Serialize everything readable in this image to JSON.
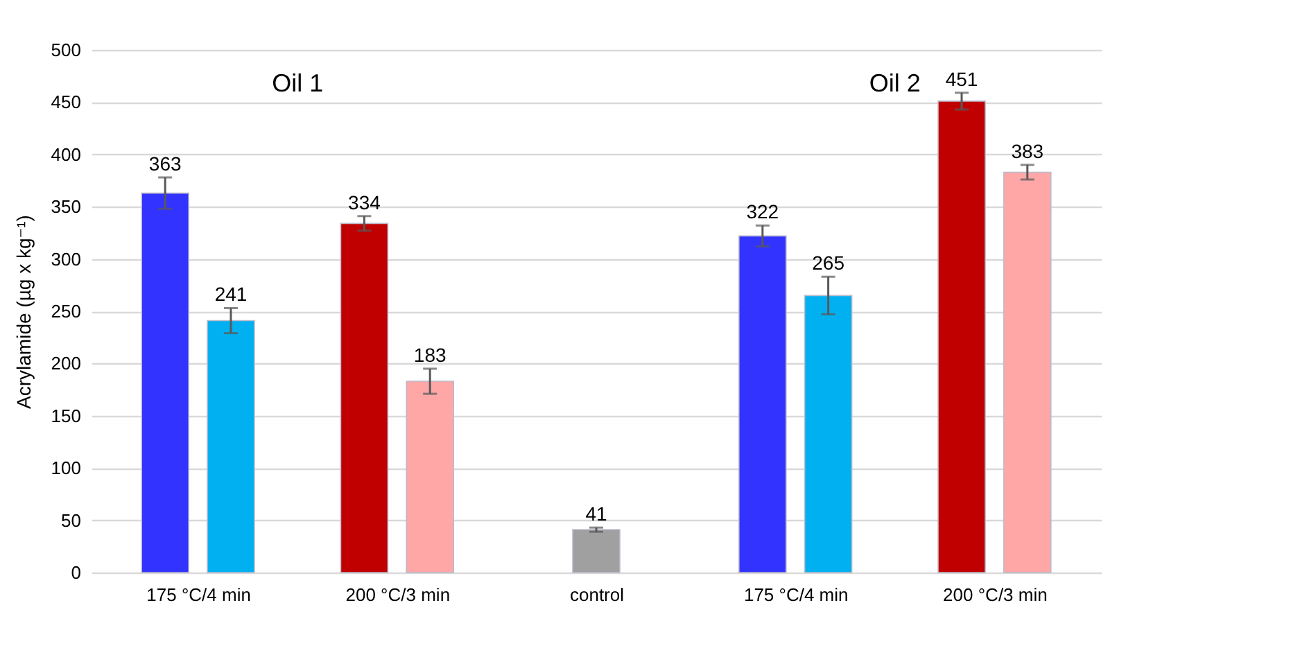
{
  "chart_data": {
    "type": "bar",
    "ylabel": "Acrylamide (µg x kg⁻¹)",
    "categories": [
      "175 °C/4 min",
      "200 °C/3 min",
      "control",
      "175 °C/4 min",
      "200 °C/3 min"
    ],
    "series": [
      {
        "colors": [
          "#3333ff",
          "#c00000",
          "#a0a0a0",
          "#3333ff",
          "#c00000"
        ],
        "values": [
          363,
          334,
          41,
          322,
          451
        ],
        "errors": [
          15,
          7,
          2,
          10,
          8
        ]
      },
      {
        "colors": [
          "#00b0f0",
          "#ffa7a7",
          null,
          "#00b0f0",
          "#ffa7a7"
        ],
        "values": [
          241,
          183,
          null,
          265,
          383
        ],
        "errors": [
          12,
          12,
          null,
          18,
          7
        ]
      }
    ],
    "ylim": [
      0,
      500
    ],
    "yticks": [
      0,
      50,
      100,
      150,
      200,
      250,
      300,
      350,
      400,
      450,
      500
    ],
    "grid": "y",
    "data_labels": true,
    "annotations": [
      "Oil 1",
      "Oil 2"
    ]
  }
}
